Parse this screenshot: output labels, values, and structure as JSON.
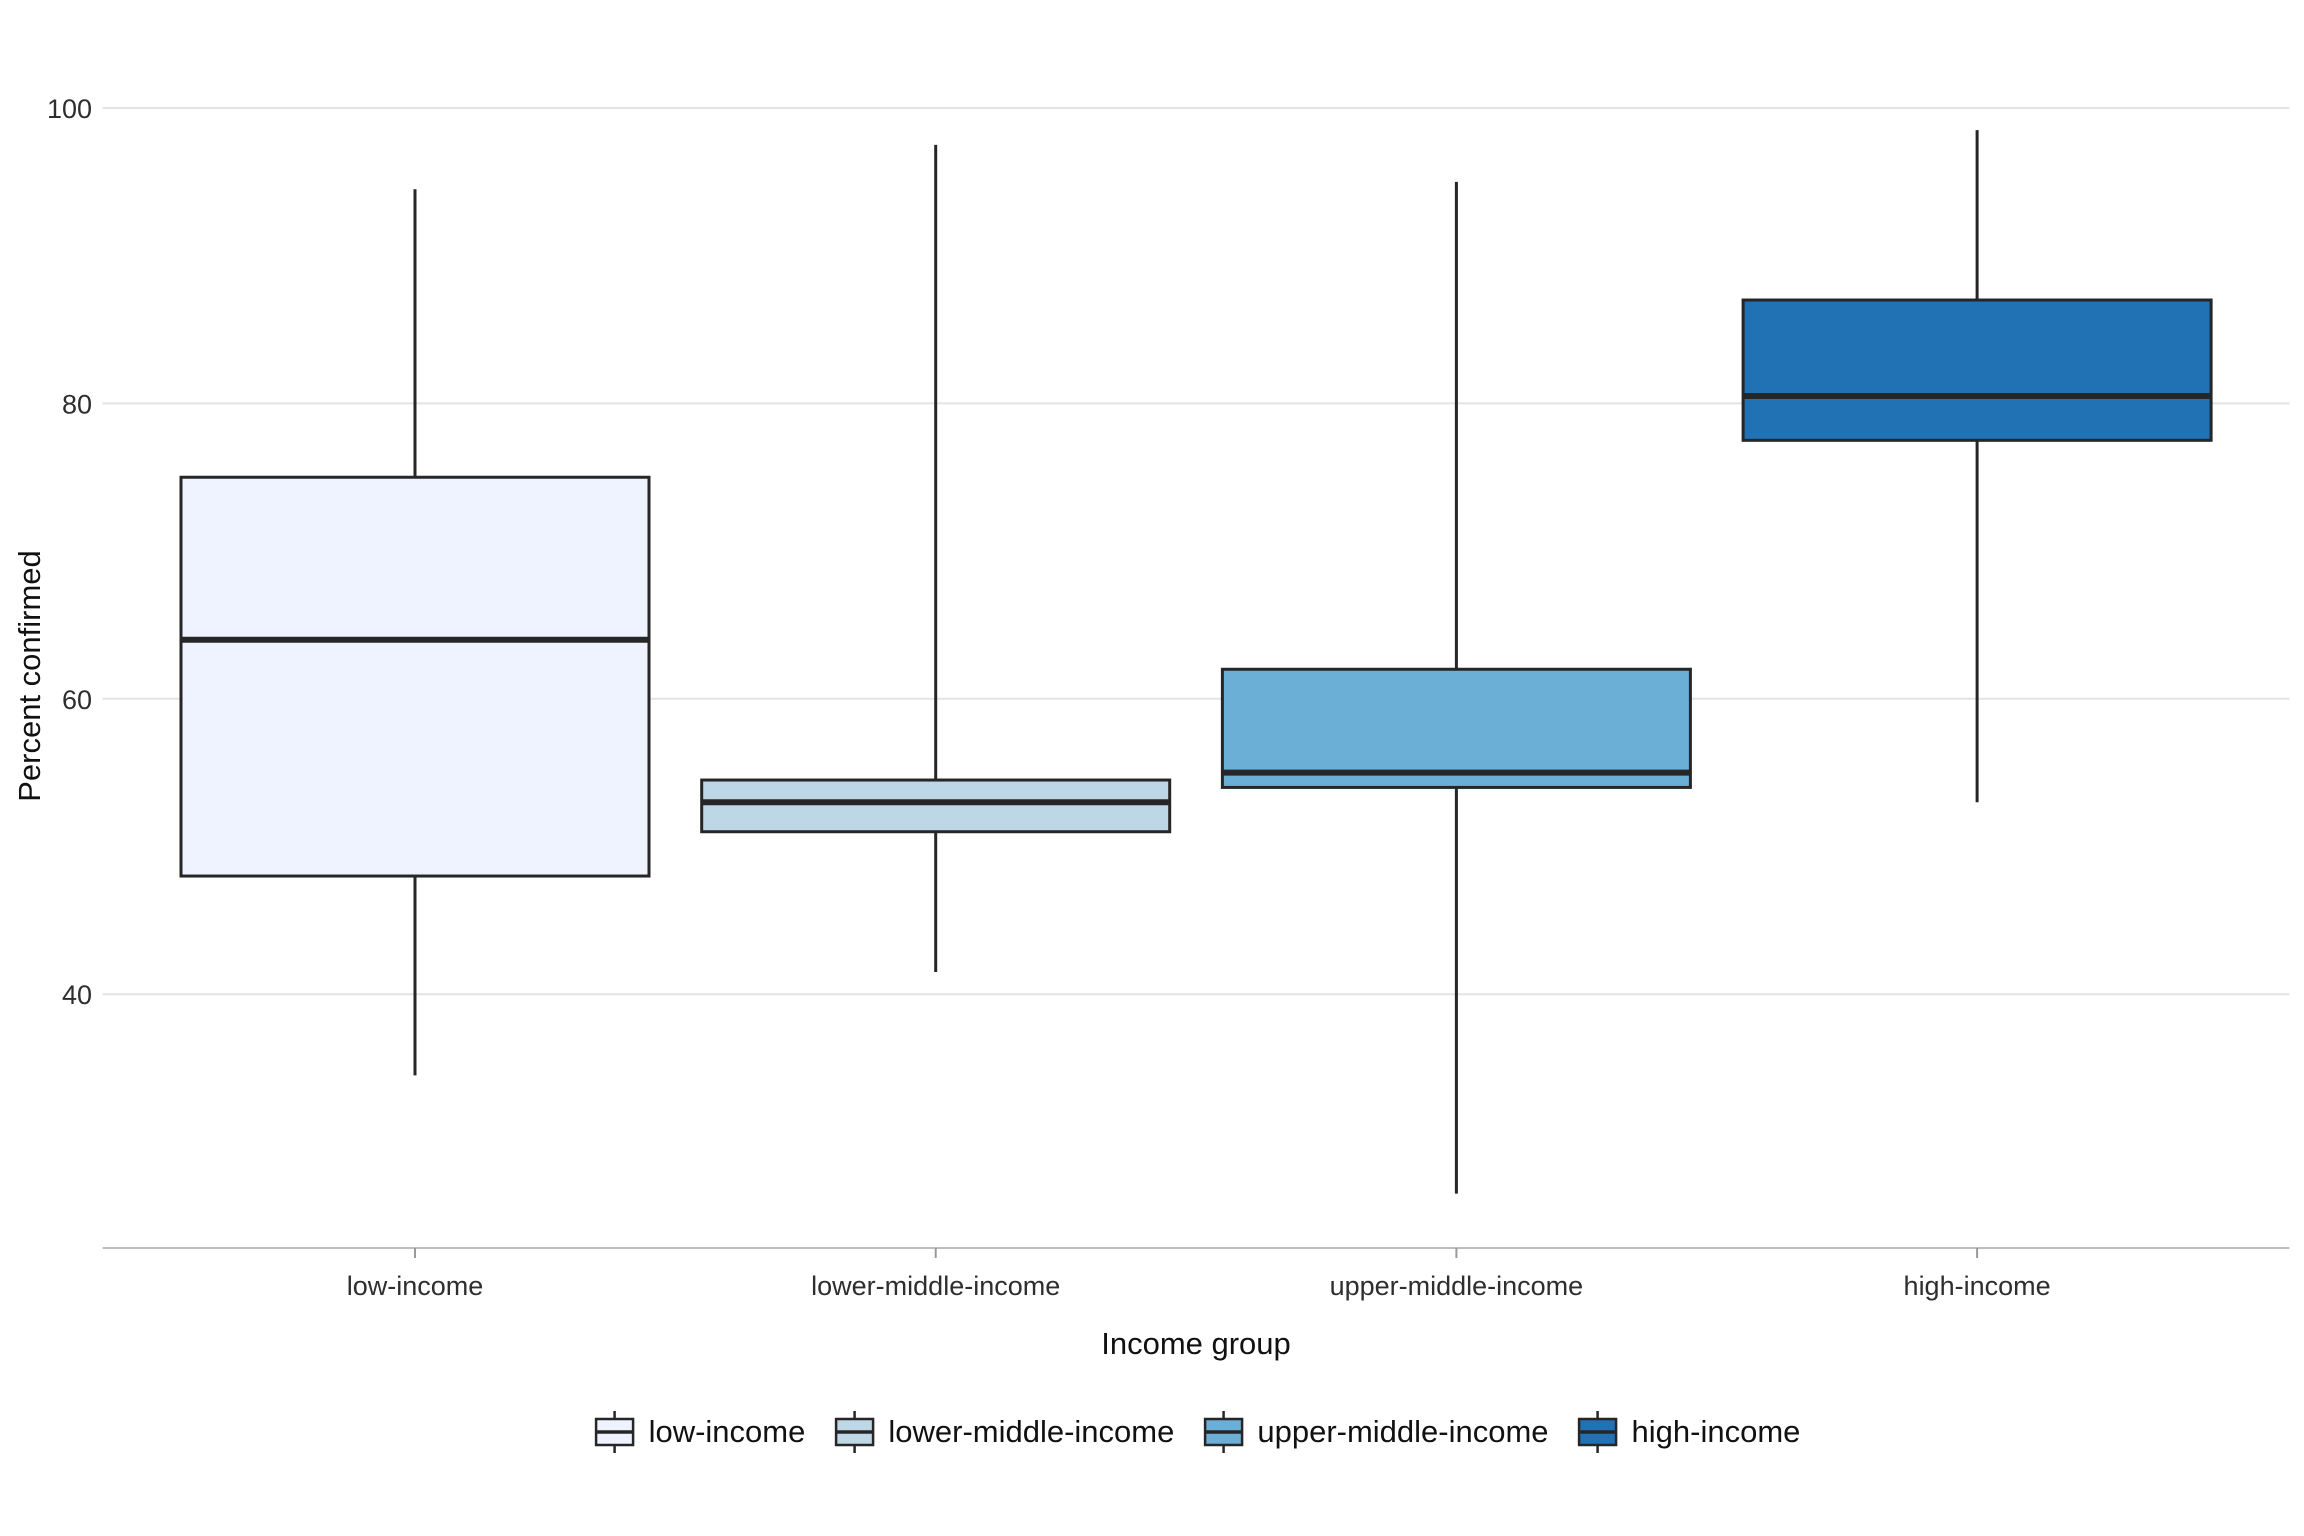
{
  "chart_data": {
    "type": "boxplot",
    "title": "",
    "xlabel": "Income group",
    "ylabel": "Percent confirmed",
    "categories": [
      "low-income",
      "lower-middle-income",
      "upper-middle-income",
      "high-income"
    ],
    "y_ticks": [
      100,
      80,
      60,
      40
    ],
    "ylim": [
      23,
      103
    ],
    "grid": "horizontal-major-only",
    "legend_position": "bottom",
    "series": [
      {
        "name": "low-income",
        "fill": "#EFF3FF",
        "whisker_low": 34.5,
        "q1": 48,
        "median": 64,
        "q3": 75,
        "whisker_high": 94.5
      },
      {
        "name": "lower-middle-income",
        "fill": "#BDD7E7",
        "whisker_low": 41.5,
        "q1": 51,
        "median": 53,
        "q3": 54.5,
        "whisker_high": 97.5
      },
      {
        "name": "upper-middle-income",
        "fill": "#6BAED6",
        "whisker_low": 26.5,
        "q1": 54,
        "median": 55,
        "q3": 62,
        "whisker_high": 95
      },
      {
        "name": "high-income",
        "fill": "#2171B5",
        "whisker_low": 53,
        "q1": 77.5,
        "median": 80.5,
        "q3": 87,
        "whisker_high": 98.5
      }
    ],
    "colors": {
      "box_stroke": "#262626",
      "gridline": "#E4E4E4",
      "axis_line": "#BDBDBD",
      "tick_mark": "#9A9A9A",
      "tick_label": "#2E2E2E",
      "axis_title": "#111111",
      "background": "#FFFFFF"
    }
  }
}
